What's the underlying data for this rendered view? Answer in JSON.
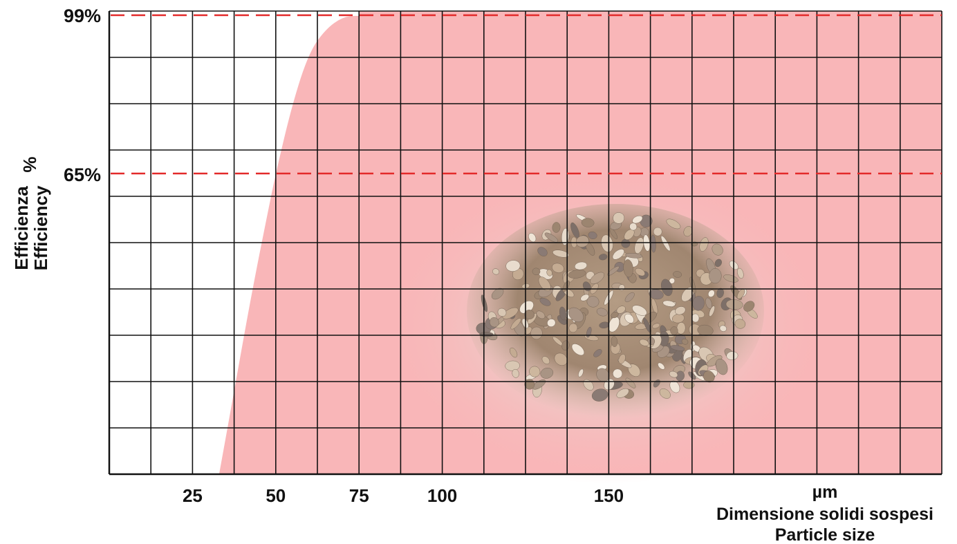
{
  "chart_data": {
    "type": "area",
    "y_reference_lines": [
      {
        "label": "99%",
        "value": 99
      },
      {
        "label": "65%",
        "value": 65
      }
    ],
    "y_axis_labels": [
      "Efficienza",
      "Efficiency",
      "%"
    ],
    "x_ticks": [
      "25",
      "50",
      "75",
      "100",
      "150"
    ],
    "x_unit": "µm",
    "x_axis_titles": [
      "Dimensione solidi sospesi",
      "Particle size"
    ],
    "xlim": [
      0,
      250
    ],
    "ylim": [
      0,
      100
    ],
    "curve": {
      "x": [
        33,
        38,
        43,
        48,
        50,
        55,
        60,
        65,
        70,
        75,
        250
      ],
      "y": [
        0,
        20,
        40,
        58,
        65,
        80,
        91,
        96,
        98.6,
        99,
        99
      ]
    },
    "grid": true,
    "colors": {
      "fill": "#f9b6b8",
      "reference_line": "#e32a2a",
      "grid": "#111111"
    },
    "decoration": "pile-of-gravel-image"
  }
}
